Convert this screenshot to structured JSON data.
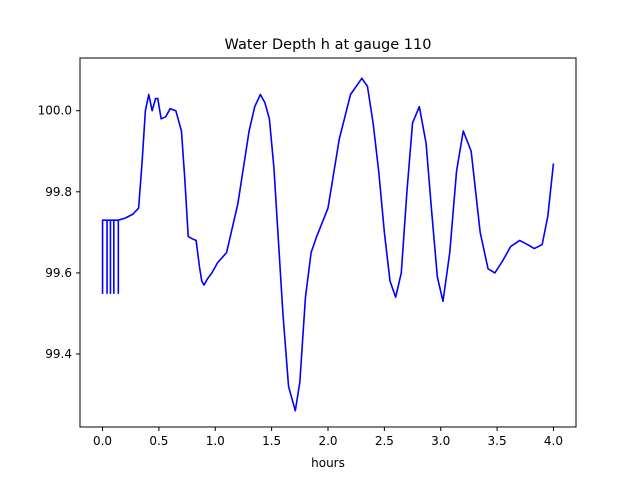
{
  "chart_data": {
    "type": "line",
    "title": "Water Depth h at gauge 110",
    "xlabel": "hours",
    "ylabel": "",
    "xlim": [
      -0.2,
      4.2
    ],
    "ylim": [
      99.22,
      100.13
    ],
    "x_ticks": [
      0.0,
      0.5,
      1.0,
      1.5,
      2.0,
      2.5,
      3.0,
      3.5,
      4.0
    ],
    "x_tick_labels": [
      "0.0",
      "0.5",
      "1.0",
      "1.5",
      "2.0",
      "2.5",
      "3.0",
      "3.5",
      "4.0"
    ],
    "y_ticks": [
      99.4,
      99.6,
      99.8,
      100.0
    ],
    "y_tick_labels": [
      "99.4",
      "99.6",
      "99.8",
      "100.0"
    ],
    "grid": false,
    "series": [
      {
        "color": "#0000ff",
        "x": [
          0.0,
          0.0,
          0.0,
          0.04,
          0.04,
          0.04,
          0.07,
          0.07,
          0.07,
          0.1,
          0.1,
          0.1,
          0.14,
          0.14,
          0.14,
          0.2,
          0.27,
          0.32,
          0.35,
          0.38,
          0.41,
          0.44,
          0.47,
          0.49,
          0.52,
          0.56,
          0.6,
          0.65,
          0.7,
          0.73,
          0.76,
          0.79,
          0.83,
          0.86,
          0.88,
          0.9,
          0.93,
          0.97,
          1.02,
          1.1,
          1.2,
          1.3,
          1.35,
          1.4,
          1.44,
          1.48,
          1.52,
          1.56,
          1.6,
          1.65,
          1.71,
          1.75,
          1.8,
          1.85,
          1.9,
          2.0,
          2.1,
          2.2,
          2.3,
          2.35,
          2.4,
          2.45,
          2.5,
          2.55,
          2.6,
          2.65,
          2.7,
          2.75,
          2.81,
          2.87,
          2.92,
          2.97,
          3.02,
          3.08,
          3.14,
          3.2,
          3.27,
          3.35,
          3.42,
          3.48,
          3.55,
          3.62,
          3.7,
          3.77,
          3.83,
          3.9,
          3.95,
          4.0
        ],
        "y": [
          99.73,
          99.55,
          99.73,
          99.73,
          99.55,
          99.73,
          99.73,
          99.55,
          99.73,
          99.73,
          99.55,
          99.73,
          99.73,
          99.55,
          99.73,
          99.735,
          99.745,
          99.76,
          99.87,
          100.0,
          100.04,
          100.0,
          100.03,
          100.03,
          99.98,
          99.985,
          100.005,
          100.0,
          99.95,
          99.83,
          99.69,
          99.685,
          99.68,
          99.615,
          99.58,
          99.57,
          99.585,
          99.6,
          99.625,
          99.65,
          99.77,
          99.95,
          100.01,
          100.04,
          100.02,
          99.98,
          99.86,
          99.68,
          99.5,
          99.32,
          99.26,
          99.33,
          99.54,
          99.65,
          99.69,
          99.76,
          99.93,
          100.04,
          100.08,
          100.06,
          99.97,
          99.85,
          99.7,
          99.58,
          99.54,
          99.6,
          99.8,
          99.97,
          100.01,
          99.92,
          99.75,
          99.59,
          99.53,
          99.65,
          99.85,
          99.95,
          99.9,
          99.7,
          99.61,
          99.6,
          99.63,
          99.665,
          99.68,
          99.67,
          99.66,
          99.67,
          99.74,
          99.87
        ]
      }
    ]
  }
}
